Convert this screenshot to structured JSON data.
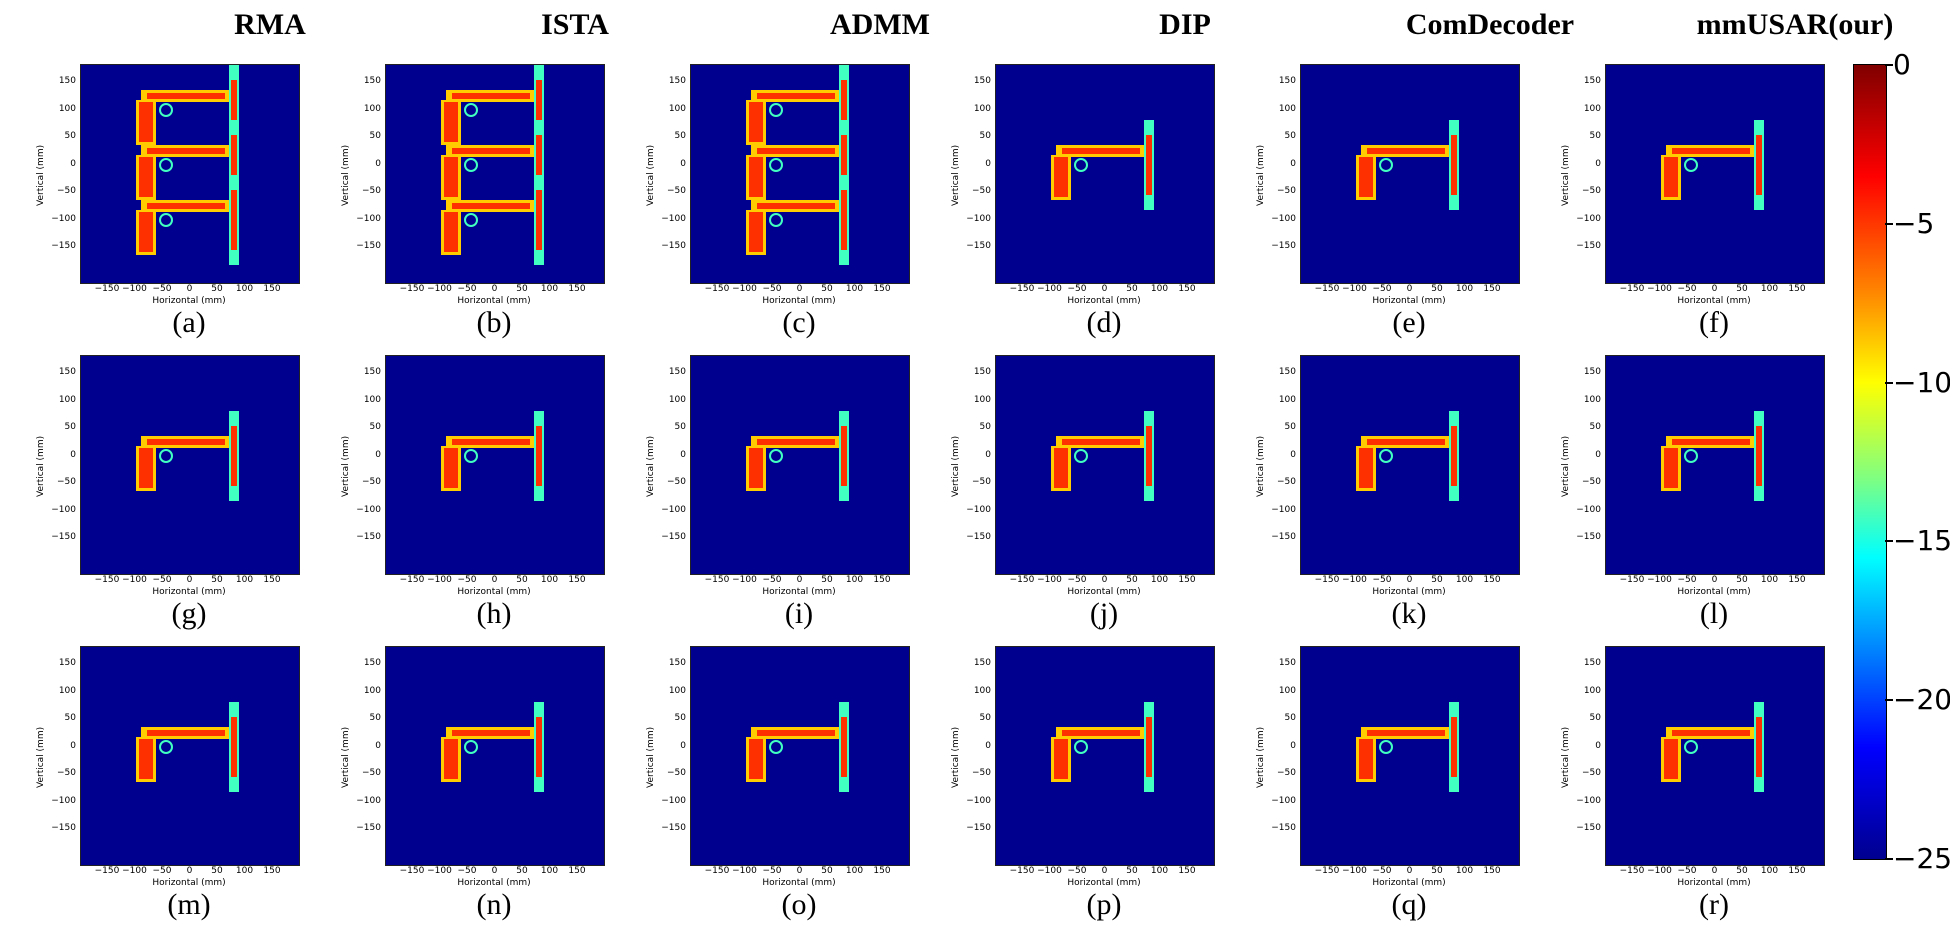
{
  "columns": [
    "RMA",
    "ISTA",
    "ADMM",
    "DIP",
    "ComDecoder",
    "mmUSAR(our)"
  ],
  "captions": [
    "(a)",
    "(b)",
    "(c)",
    "(d)",
    "(e)",
    "(f)",
    "(g)",
    "(h)",
    "(i)",
    "(j)",
    "(k)",
    "(l)",
    "(m)",
    "(n)",
    "(o)",
    "(p)",
    "(q)",
    "(r)"
  ],
  "axes": {
    "xlabel": "Horizontal (mm)",
    "ylabel": "Vertical (mm)",
    "xticks": [
      "−150",
      "−100",
      "−50",
      "0",
      "50",
      "100",
      "150"
    ],
    "yticks": [
      "150",
      "100",
      "50",
      "0",
      "−50",
      "−100",
      "−150"
    ]
  },
  "colorbar": {
    "ticks": [
      "0",
      "−5",
      "−10",
      "−15",
      "−20",
      "−25"
    ],
    "colormap": "jet",
    "range": [
      -25,
      0
    ]
  },
  "colors": {
    "background": "#00008f",
    "hot": "#ff3000",
    "warm": "#ffcc00",
    "cool": "#40ffc0"
  }
}
